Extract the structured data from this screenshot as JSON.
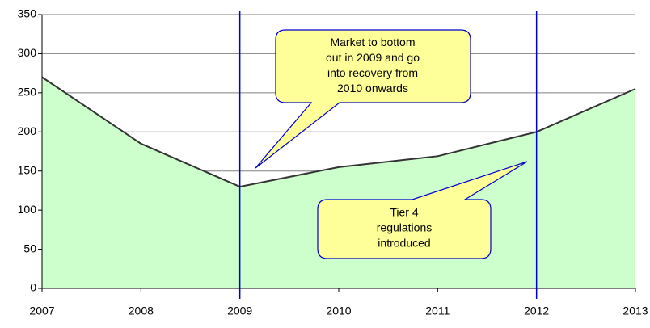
{
  "chart_data": {
    "type": "area",
    "x": [
      2007,
      2008,
      2009,
      2010,
      2011,
      2012,
      2013
    ],
    "series": [
      {
        "color": "#333333",
        "fill": "#ccffcc",
        "values": [
          270,
          185,
          130,
          155,
          169,
          200,
          255
        ]
      }
    ],
    "xlim": [
      2007,
      2013
    ],
    "xticks": [
      2007,
      2008,
      2009,
      2010,
      2011,
      2012,
      2013
    ],
    "ylim": [
      0,
      350
    ],
    "yticks": [
      0,
      50,
      100,
      150,
      200,
      250,
      300,
      350
    ],
    "grid": true,
    "vlines": [
      2009,
      2012
    ],
    "vline_color": "#0000cc",
    "annotations": [
      {
        "lines": [
          "Market to bottom",
          "out in 2009 and go",
          "into recovery from",
          "2010 onwards"
        ]
      },
      {
        "lines": [
          "Tier 4",
          "regulations",
          "introduced"
        ]
      }
    ]
  }
}
